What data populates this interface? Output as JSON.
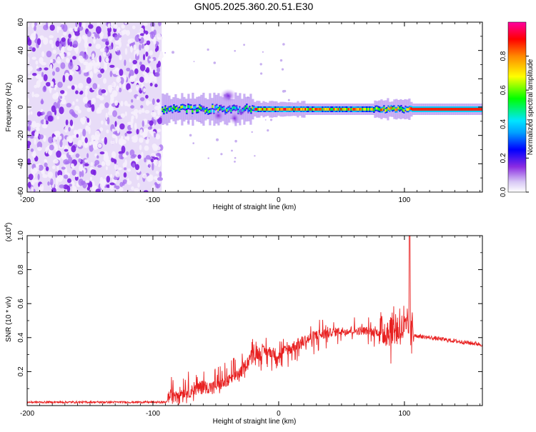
{
  "title": "GN05.2025.360.20.51.E30",
  "chart_data": [
    {
      "type": "heatmap",
      "name": "spectrogram",
      "xlabel": "Height of straight line (km)",
      "ylabel": "Frequency (Hz)",
      "xlim": [
        -200,
        162
      ],
      "ylim": [
        -60,
        60
      ],
      "xticks": [
        -200,
        -100,
        0,
        100
      ],
      "yticks": [
        60,
        40,
        20,
        0,
        -20,
        -40,
        -60
      ],
      "colorbar": {
        "label": "Normalized spectral amplitude",
        "range": [
          0,
          1
        ],
        "ticks": [
          "0.0",
          "0.2",
          "0.4",
          "0.6",
          "0.8"
        ],
        "tick_values": [
          0,
          0.2,
          0.4,
          0.6,
          0.8
        ],
        "colors": [
          "#ffffff",
          "#8a2be2",
          "#0000ff",
          "#00e5ff",
          "#00ff00",
          "#ffff00",
          "#ff8800",
          "#ff0000",
          "#ff00a0"
        ]
      },
      "regions": [
        {
          "x_range": [
            -200,
            -93
          ],
          "freq_range": [
            -60,
            60
          ],
          "description_level": 0.15
        },
        {
          "x_range": [
            -93,
            162
          ],
          "center_freq_hz": -1.5,
          "peak_level": 0.95
        }
      ]
    },
    {
      "type": "line",
      "name": "snr",
      "xlabel": "Height of straight line (km)",
      "ylabel": "SNR (10 * v/v)",
      "y_multiplier": "(x10",
      "y_multiplier_exp": "4",
      "y_multiplier_close": ")",
      "xlim": [
        -200,
        162
      ],
      "ylim": [
        0,
        1.0
      ],
      "xticks": [
        -200,
        -100,
        0,
        100
      ],
      "yticks": [
        0.2,
        0.4,
        0.6,
        0.8,
        1.0
      ],
      "ytick_labels": [
        "0.2",
        "0.4",
        "0.6",
        "0.8",
        "1.0"
      ],
      "color": "#e82020",
      "series": [
        {
          "name": "SNR",
          "x": [
            -200,
            -150,
            -100,
            -90,
            -85,
            -80,
            -70,
            -60,
            -50,
            -40,
            -30,
            -20,
            -10,
            0,
            10,
            20,
            30,
            40,
            50,
            60,
            70,
            80,
            90,
            95,
            100,
            105,
            110,
            120,
            130,
            140,
            150,
            162
          ],
          "y": [
            0.02,
            0.02,
            0.02,
            0.02,
            0.05,
            0.06,
            0.07,
            0.09,
            0.1,
            0.13,
            0.18,
            0.3,
            0.32,
            0.3,
            0.34,
            0.38,
            0.41,
            0.43,
            0.44,
            0.44,
            0.44,
            0.43,
            0.45,
            0.45,
            0.45,
            0.43,
            0.41,
            0.4,
            0.39,
            0.38,
            0.37,
            0.36
          ]
        }
      ],
      "annotations": [
        {
          "x": 104,
          "y": 1.0,
          "note": "spike"
        }
      ]
    }
  ]
}
